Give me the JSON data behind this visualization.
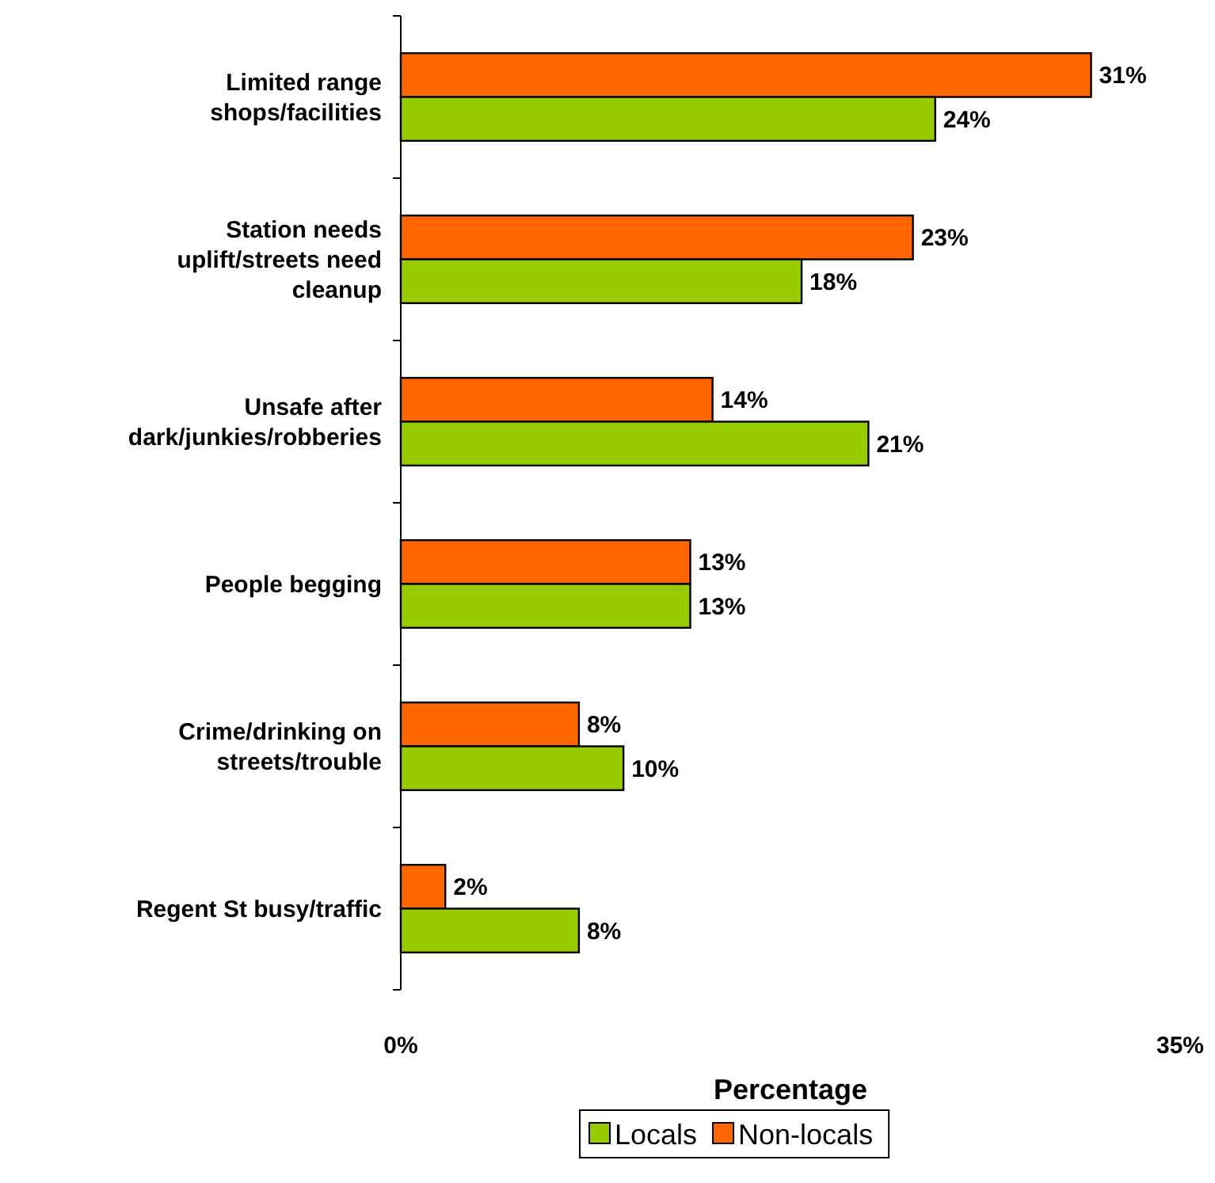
{
  "chart_data": {
    "type": "bar",
    "orientation": "horizontal",
    "xlabel": "Percentage",
    "categories": [
      "Limited range shops/facilities",
      "Station needs uplift/streets need cleanup",
      "Unsafe after dark/junkies/robberies",
      "People begging",
      "Crime/drinking on streets/trouble",
      "Regent St busy/traffic"
    ],
    "series": [
      {
        "name": "Non-locals",
        "color": "#ff6600",
        "values": [
          31,
          23,
          14,
          13,
          8,
          2
        ],
        "value_labels": [
          "31%",
          "23%",
          "14%",
          "13%",
          "8%",
          "2%"
        ]
      },
      {
        "name": "Locals",
        "color": "#99cc00",
        "values": [
          24,
          18,
          21,
          13,
          10,
          8
        ],
        "value_labels": [
          "24%",
          "18%",
          "21%",
          "13%",
          "10%",
          "8%"
        ]
      }
    ],
    "xlim": [
      0,
      35
    ],
    "xticks": [
      {
        "value": 0,
        "label": "0%"
      },
      {
        "value": 35,
        "label": "35%"
      }
    ],
    "grid": false,
    "legend": "bottom"
  }
}
